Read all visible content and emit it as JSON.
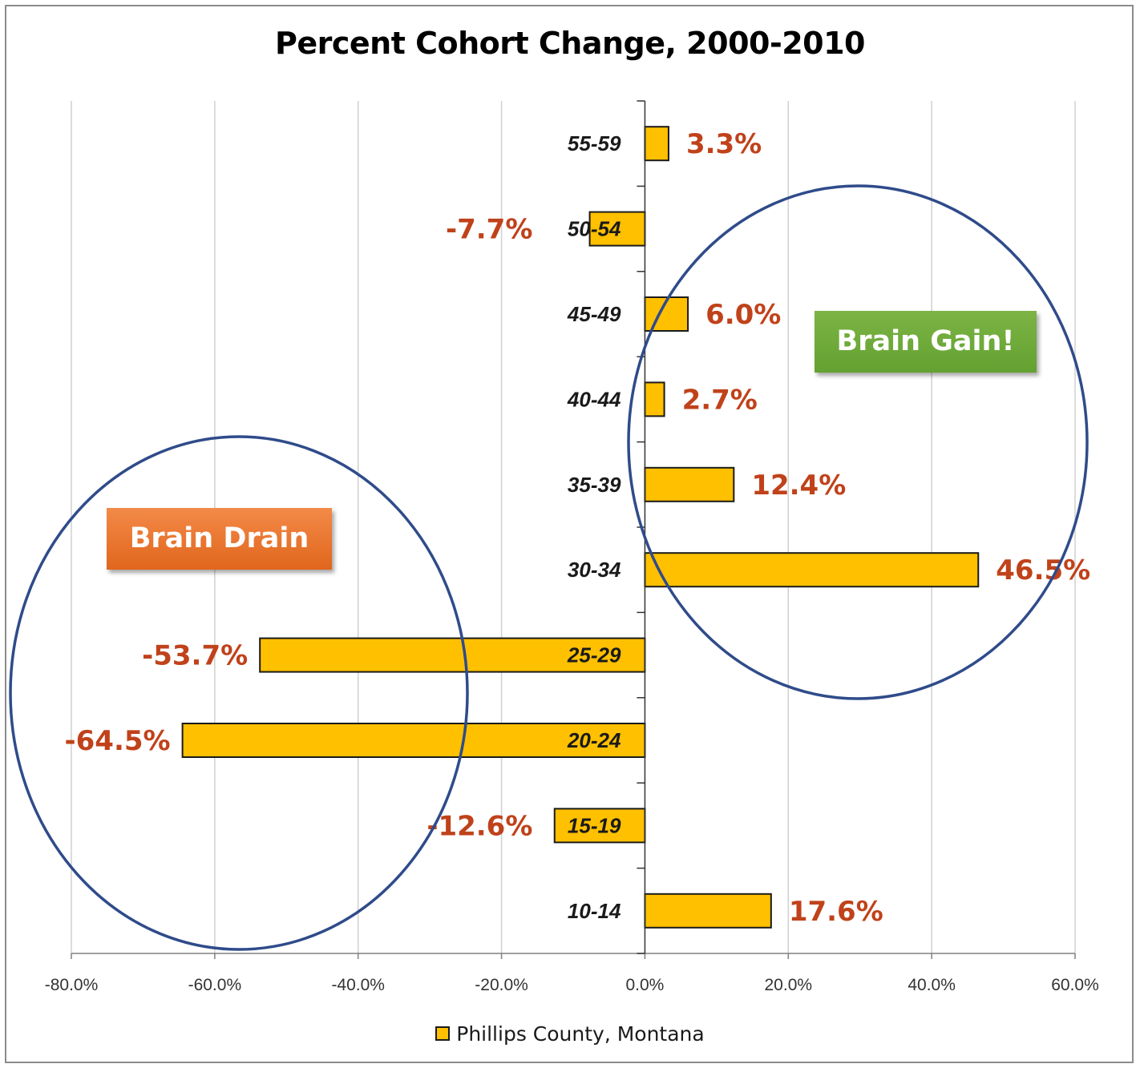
{
  "chart_data": {
    "type": "bar",
    "orientation": "horizontal",
    "title": "Percent Cohort Change, 2000-2010",
    "categories": [
      "55-59",
      "50-54",
      "45-49",
      "40-44",
      "35-39",
      "30-34",
      "25-29",
      "20-24",
      "15-19",
      "10-14"
    ],
    "series": [
      {
        "name": "Phillips County, Montana",
        "values": [
          3.3,
          -7.7,
          6.0,
          2.7,
          12.4,
          46.5,
          -53.7,
          -64.5,
          -12.6,
          17.6
        ],
        "labels": [
          "3.3%",
          "-7.7%",
          "6.0%",
          "2.7%",
          "12.4%",
          "46.5%",
          "-53.7%",
          "-64.5%",
          "-12.6%",
          "17.6%"
        ],
        "color": "#ffc000"
      }
    ],
    "xlim": [
      -80,
      60
    ],
    "xticks": [
      -80,
      -60,
      -40,
      -20,
      0,
      20,
      40,
      60
    ],
    "xtick_labels": [
      "-80.0%",
      "-60.0%",
      "-40.0%",
      "-20.0%",
      "0.0%",
      "20.0%",
      "40.0%",
      "60.0%"
    ],
    "grid": "vertical",
    "legend_position": "bottom",
    "label_color": "#c0421a",
    "annotations": [
      {
        "text": "Brain Drain",
        "color": "#e8742d"
      },
      {
        "text": "Brain Gain!",
        "color": "#70ad3c"
      }
    ],
    "circle_color": "#2f4b8a"
  }
}
